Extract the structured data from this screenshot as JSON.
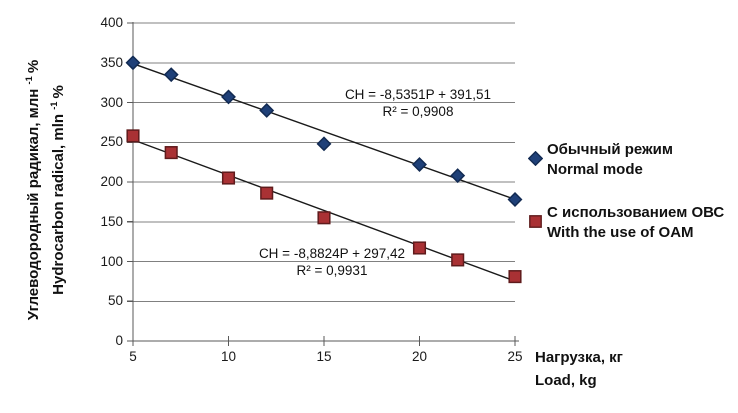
{
  "chart_data": {
    "type": "scatter",
    "title": "",
    "gridlines": "horizontal-only",
    "legend_position": "right",
    "x_axis": {
      "title_line1": "Нагрузка, кг",
      "title_line2": "Load, kg",
      "ticks": [
        5,
        10,
        15,
        20,
        25
      ],
      "range": [
        5,
        25
      ]
    },
    "y_axis": {
      "title_line1": {
        "text": "Углеводородный радикал, млн",
        "sup": "-1",
        "suffix": "%"
      },
      "title_line2": {
        "text": "Hydrocarbon radical, mln",
        "sup": "-1",
        "suffix": "%"
      },
      "ticks": [
        0,
        50,
        100,
        150,
        200,
        250,
        300,
        350,
        400
      ],
      "range": [
        0,
        400
      ]
    },
    "series": [
      {
        "name_line1": "Обычный режим",
        "name_line2": "Normal mode",
        "marker": "diamond",
        "color": "#1f4078",
        "border_color": "#122a52",
        "x": [
          5,
          7,
          10,
          12,
          15,
          20,
          22,
          25
        ],
        "y": [
          350,
          335,
          307,
          290,
          248,
          222,
          208,
          178
        ],
        "trendline": {
          "slope": -8.5351,
          "intercept": 391.51
        },
        "equation": "CH = -8,5351P + 391,51",
        "r_squared": "R² = 0,9908"
      },
      {
        "name_line1": "С использованием ОВС",
        "name_line2": "With the use of OAM",
        "marker": "square",
        "color": "#a93134",
        "border_color": "#5f1b1c",
        "x": [
          5,
          7,
          10,
          12,
          15,
          20,
          22,
          25
        ],
        "y": [
          258,
          237,
          205,
          186,
          155,
          117,
          102,
          81
        ],
        "trendline": {
          "slope": -8.8824,
          "intercept": 297.42
        },
        "equation": "CH = -8,8824P + 297,42",
        "r_squared": "R² = 0,9931"
      }
    ],
    "colors": {
      "gridline": "#808080",
      "axis": "#595959",
      "trendline": "#1a1a1a",
      "text": "#111111"
    }
  }
}
